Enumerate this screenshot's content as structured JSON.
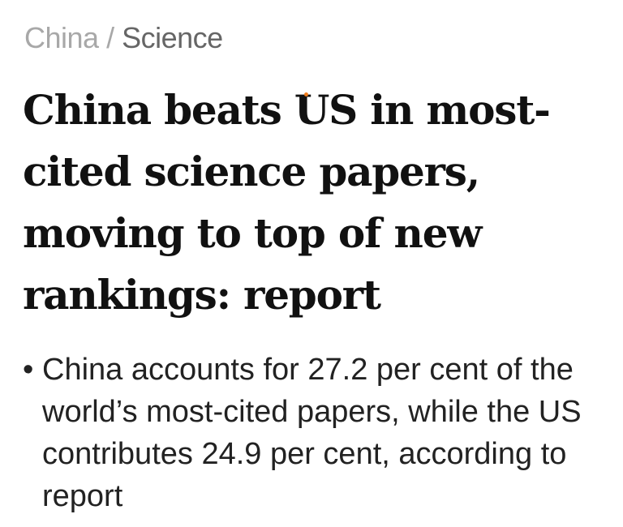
{
  "breadcrumb": {
    "section": "China",
    "separator": "/",
    "subsection": "Science"
  },
  "headline": "China beats US in most-cited science papers, moving to top of new rankings: report",
  "summary": {
    "bullet": "•",
    "text": "China accounts for 27.2 per cent of the world’s most-cited papers, while the US contributes 24.9 per cent, according to report"
  },
  "colors": {
    "touch_indicator": "#f07c1c"
  }
}
